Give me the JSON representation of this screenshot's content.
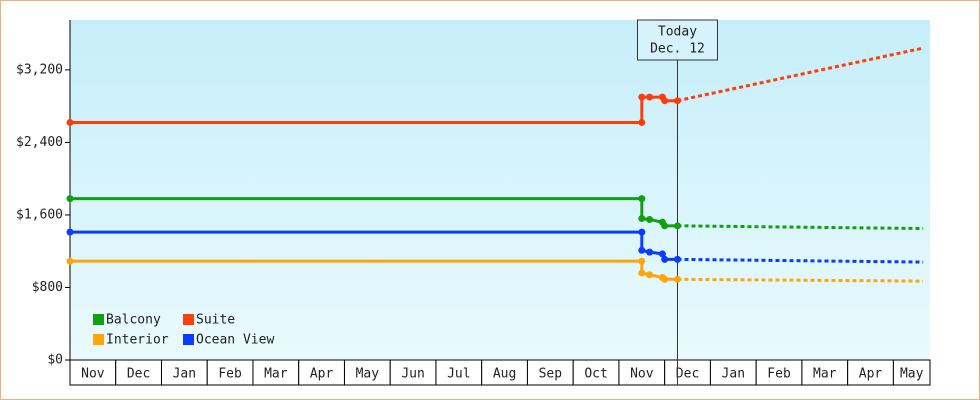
{
  "chart_data": {
    "type": "line",
    "x": [
      0,
      12.5,
      12.5,
      12.67,
      12.95,
      13.0,
      13.28
    ],
    "forecast_x": [
      13.28,
      18.65
    ],
    "xlim": [
      0,
      18.8
    ],
    "categories": [
      "Nov",
      "Dec",
      "Jan",
      "Feb",
      "Mar",
      "Apr",
      "May",
      "Jun",
      "Jul",
      "Aug",
      "Sep",
      "Oct",
      "Nov",
      "Dec",
      "Jan",
      "Feb",
      "Mar",
      "Apr",
      "May"
    ],
    "ylim": [
      0,
      3750
    ],
    "yticks": [
      {
        "value": 0,
        "label": "$0"
      },
      {
        "value": 800,
        "label": "$800"
      },
      {
        "value": 1600,
        "label": "$1,600"
      },
      {
        "value": 2400,
        "label": "$2,400"
      },
      {
        "value": 3200,
        "label": "$3,200"
      }
    ],
    "series": [
      {
        "name": "Balcony",
        "color": "#11a011",
        "values": [
          1780,
          1780,
          1560,
          1550,
          1520,
          1480,
          1480
        ],
        "forecast_values": [
          1480,
          1450
        ]
      },
      {
        "name": "Suite",
        "color": "#ff3d0a",
        "values": [
          2620,
          2620,
          2900,
          2900,
          2900,
          2860,
          2860
        ],
        "forecast_values": [
          2860,
          3440
        ]
      },
      {
        "name": "Interior",
        "color": "#ffa50a",
        "values": [
          1090,
          1090,
          960,
          940,
          910,
          890,
          890
        ],
        "forecast_values": [
          890,
          870
        ]
      },
      {
        "name": "Ocean View",
        "color": "#0a3cff",
        "values": [
          1410,
          1410,
          1210,
          1190,
          1170,
          1110,
          1110
        ],
        "forecast_values": [
          1110,
          1080
        ]
      }
    ],
    "today_x": 13.28,
    "annotation": [
      "Today",
      "Dec. 12"
    ],
    "legend": "lower-left",
    "grid": false
  }
}
